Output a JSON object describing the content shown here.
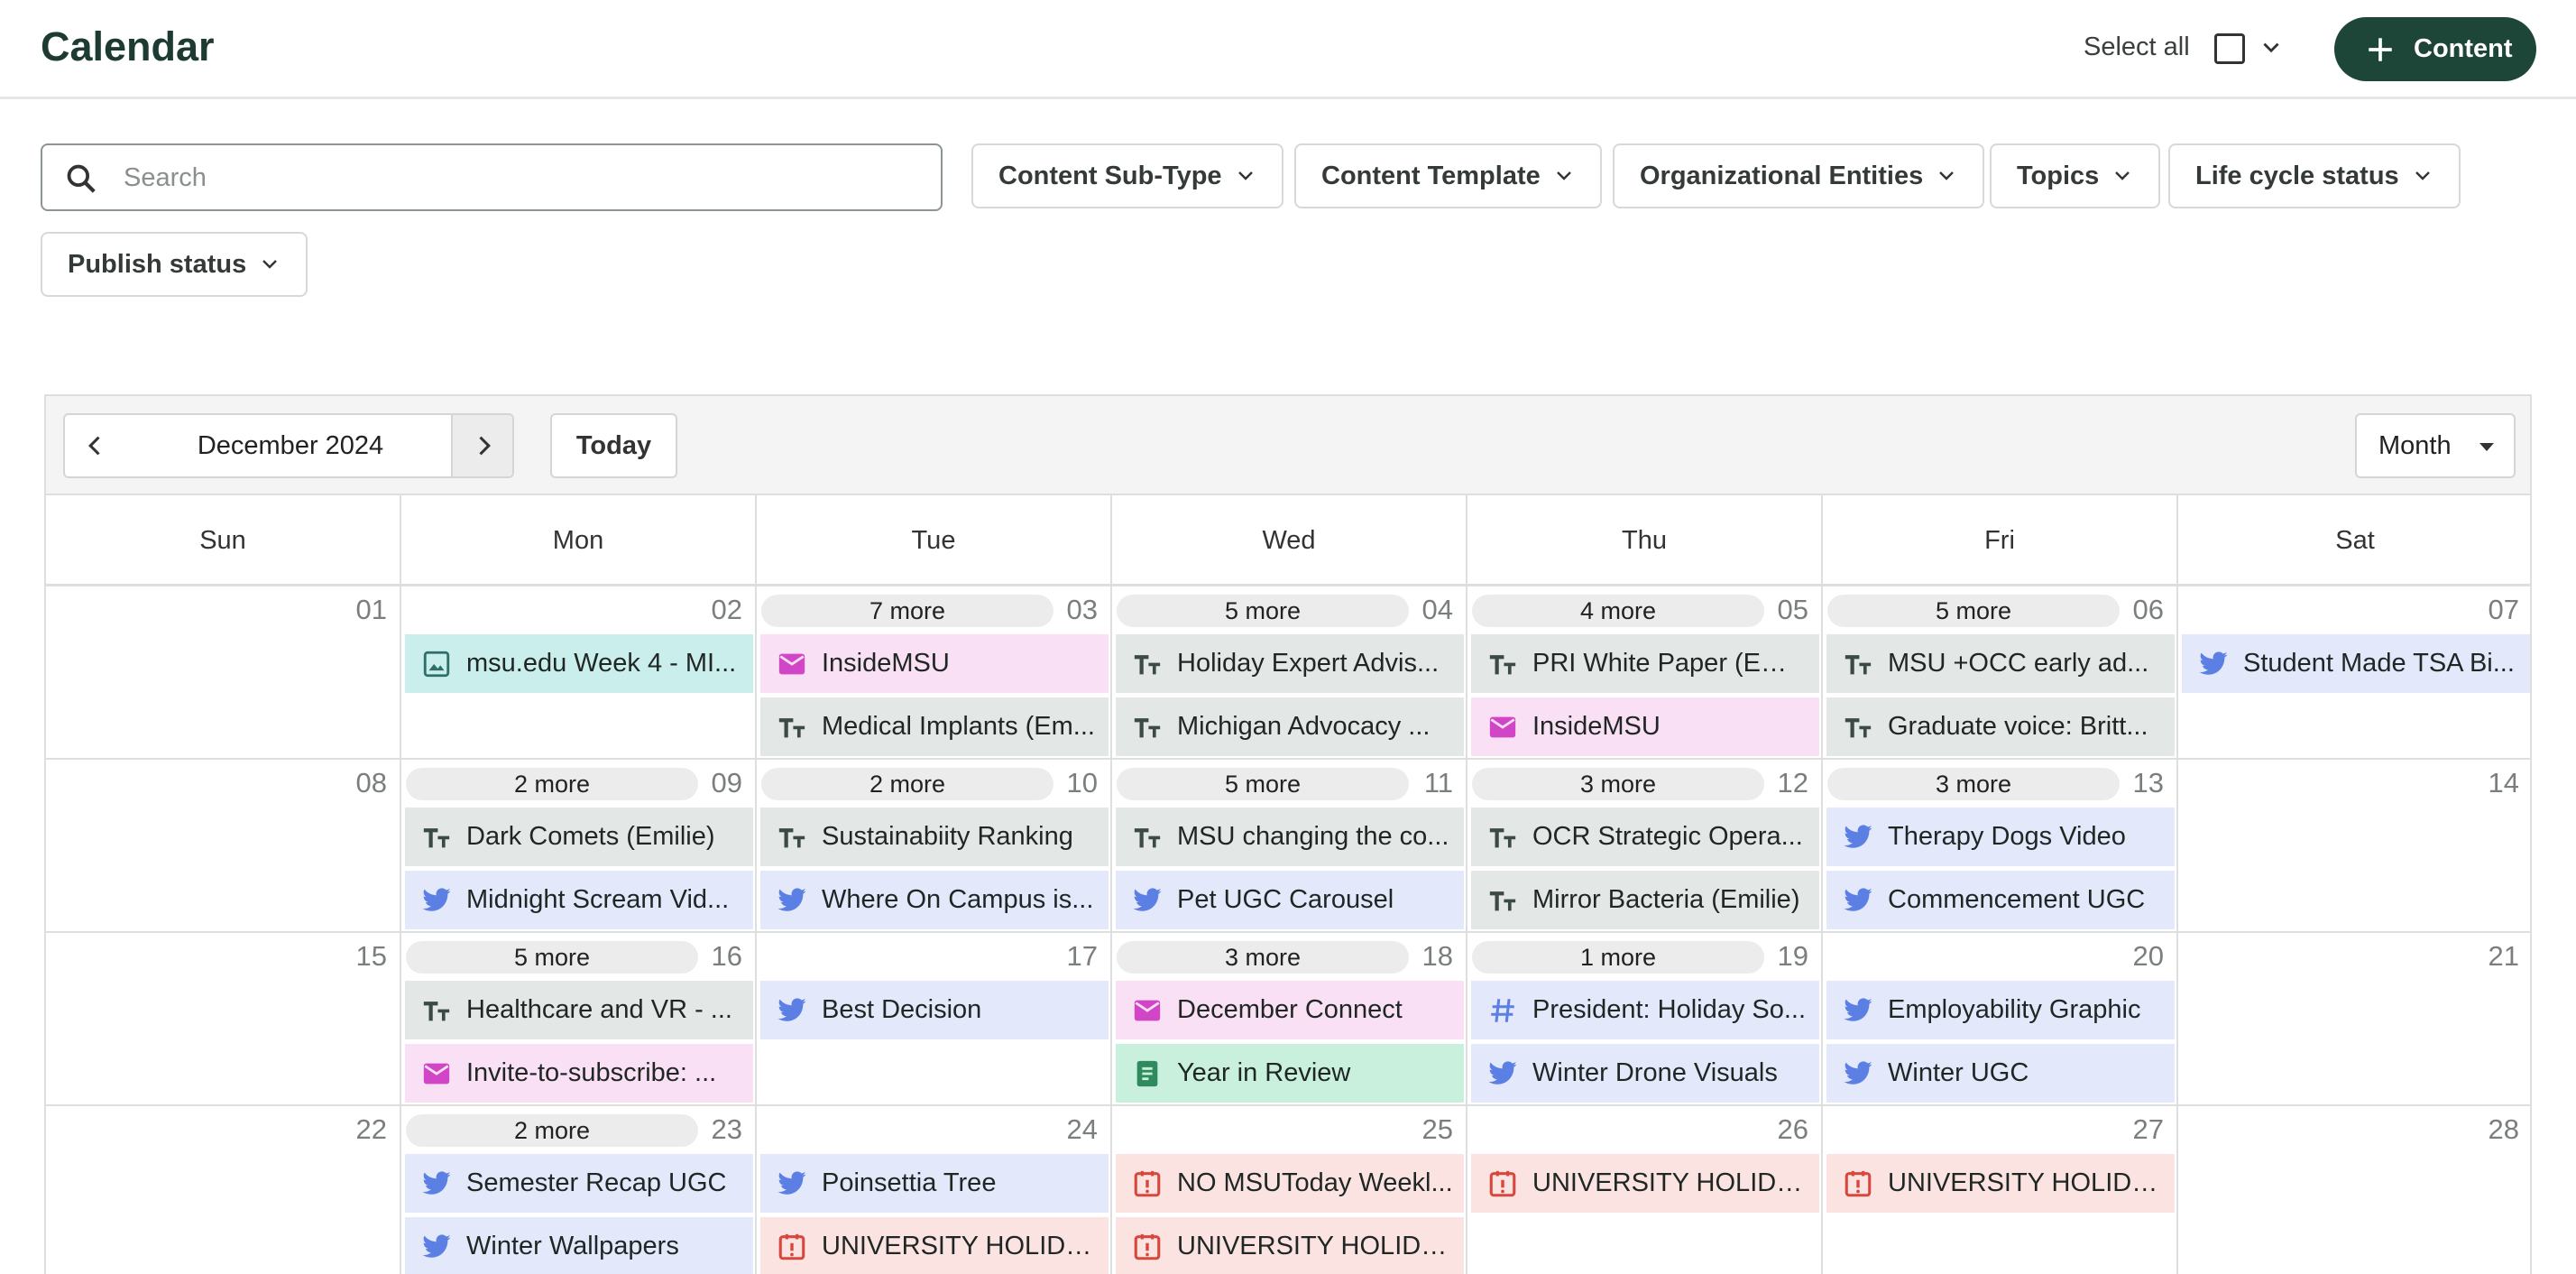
{
  "header": {
    "title": "Calendar",
    "select_all_label": "Select all",
    "add_button_label": "Content",
    "accent_color": "#1e4638"
  },
  "filters": {
    "search_placeholder": "Search",
    "search_value": "",
    "items": [
      "Content Sub-Type",
      "Content Template",
      "Organizational Entities",
      "Topics",
      "Life cycle status",
      "Publish status"
    ]
  },
  "calendar": {
    "month_label": "December 2024",
    "today_label": "Today",
    "view_label": "Month",
    "weekdays": [
      "Sun",
      "Mon",
      "Tue",
      "Wed",
      "Thu",
      "Fri",
      "Sat"
    ],
    "weeks": [
      [
        {
          "day": "01",
          "more": "",
          "events": []
        },
        {
          "day": "02",
          "more": "",
          "events": [
            {
              "type": "image",
              "icon": "image-icon",
              "title": "msu.edu Week 4 - MI..."
            }
          ]
        },
        {
          "day": "03",
          "more": "7 more",
          "events": [
            {
              "type": "email",
              "icon": "mail-icon",
              "title": "InsideMSU"
            },
            {
              "type": "text",
              "icon": "text-format-icon",
              "title": "Medical Implants (Em..."
            }
          ]
        },
        {
          "day": "04",
          "more": "5 more",
          "events": [
            {
              "type": "text",
              "icon": "text-format-icon",
              "title": "Holiday Expert Advis..."
            },
            {
              "type": "text",
              "icon": "text-format-icon",
              "title": "Michigan Advocacy ..."
            }
          ]
        },
        {
          "day": "05",
          "more": "4 more",
          "events": [
            {
              "type": "text",
              "icon": "text-format-icon",
              "title": "PRI White Paper (Emi..."
            },
            {
              "type": "email",
              "icon": "mail-icon",
              "title": "InsideMSU"
            }
          ]
        },
        {
          "day": "06",
          "more": "5 more",
          "events": [
            {
              "type": "text",
              "icon": "text-format-icon",
              "title": "MSU +OCC early ad..."
            },
            {
              "type": "text",
              "icon": "text-format-icon",
              "title": "Graduate voice: Britt..."
            }
          ]
        },
        {
          "day": "07",
          "more": "",
          "events": [
            {
              "type": "twitter",
              "icon": "twitter-bird-icon",
              "title": "Student Made TSA Bi..."
            }
          ]
        }
      ],
      [
        {
          "day": "08",
          "more": "",
          "events": []
        },
        {
          "day": "09",
          "more": "2 more",
          "events": [
            {
              "type": "text",
              "icon": "text-format-icon",
              "title": "Dark Comets (Emilie)"
            },
            {
              "type": "twitter",
              "icon": "twitter-bird-icon",
              "title": "Midnight Scream Vid..."
            }
          ]
        },
        {
          "day": "10",
          "more": "2 more",
          "events": [
            {
              "type": "text",
              "icon": "text-format-icon",
              "title": "Sustainabiity Ranking"
            },
            {
              "type": "twitter",
              "icon": "twitter-bird-icon",
              "title": "Where On Campus is..."
            }
          ]
        },
        {
          "day": "11",
          "more": "5 more",
          "events": [
            {
              "type": "text",
              "icon": "text-format-icon",
              "title": "MSU changing the co..."
            },
            {
              "type": "twitter",
              "icon": "twitter-bird-icon",
              "title": "Pet UGC Carousel"
            }
          ]
        },
        {
          "day": "12",
          "more": "3 more",
          "events": [
            {
              "type": "text",
              "icon": "text-format-icon",
              "title": "OCR Strategic Opera..."
            },
            {
              "type": "text",
              "icon": "text-format-icon",
              "title": "Mirror Bacteria (Emilie)"
            }
          ]
        },
        {
          "day": "13",
          "more": "3 more",
          "events": [
            {
              "type": "twitter",
              "icon": "twitter-bird-icon",
              "title": "Therapy Dogs Video"
            },
            {
              "type": "twitter",
              "icon": "twitter-bird-icon",
              "title": "Commencement UGC"
            }
          ]
        },
        {
          "day": "14",
          "more": "",
          "events": []
        }
      ],
      [
        {
          "day": "15",
          "more": "",
          "events": []
        },
        {
          "day": "16",
          "more": "5 more",
          "events": [
            {
              "type": "text",
              "icon": "text-format-icon",
              "title": "Healthcare and VR - ..."
            },
            {
              "type": "email",
              "icon": "mail-icon",
              "title": "Invite-to-subscribe: ..."
            }
          ]
        },
        {
          "day": "17",
          "more": "",
          "events": [
            {
              "type": "twitter",
              "icon": "twitter-bird-icon",
              "title": "Best Decision"
            }
          ]
        },
        {
          "day": "18",
          "more": "3 more",
          "events": [
            {
              "type": "email",
              "icon": "mail-icon",
              "title": "December Connect"
            },
            {
              "type": "doc",
              "icon": "document-icon",
              "title": "Year in Review"
            }
          ]
        },
        {
          "day": "19",
          "more": "1 more",
          "events": [
            {
              "type": "hash",
              "icon": "hashtag-icon",
              "title": "President: Holiday So..."
            },
            {
              "type": "twitter",
              "icon": "twitter-bird-icon",
              "title": "Winter Drone Visuals"
            }
          ]
        },
        {
          "day": "20",
          "more": "",
          "events": [
            {
              "type": "twitter",
              "icon": "twitter-bird-icon",
              "title": "Employability Graphic"
            },
            {
              "type": "twitter",
              "icon": "twitter-bird-icon",
              "title": "Winter UGC"
            }
          ]
        },
        {
          "day": "21",
          "more": "",
          "events": []
        }
      ],
      [
        {
          "day": "22",
          "more": "",
          "events": []
        },
        {
          "day": "23",
          "more": "2 more",
          "events": [
            {
              "type": "twitter",
              "icon": "twitter-bird-icon",
              "title": "Semester Recap UGC"
            },
            {
              "type": "twitter",
              "icon": "twitter-bird-icon",
              "title": "Winter Wallpapers"
            }
          ]
        },
        {
          "day": "24",
          "more": "",
          "events": [
            {
              "type": "twitter",
              "icon": "twitter-bird-icon",
              "title": "Poinsettia Tree"
            },
            {
              "type": "holiday",
              "icon": "calendar-alert-icon",
              "title": "UNIVERSITY HOLIDAY"
            }
          ]
        },
        {
          "day": "25",
          "more": "",
          "events": [
            {
              "type": "holiday",
              "icon": "calendar-alert-icon",
              "title": "NO MSUToday Weekl..."
            },
            {
              "type": "holiday",
              "icon": "calendar-alert-icon",
              "title": "UNIVERSITY HOLIDAY"
            }
          ]
        },
        {
          "day": "26",
          "more": "",
          "events": [
            {
              "type": "holiday",
              "icon": "calendar-alert-icon",
              "title": "UNIVERSITY HOLIDAY"
            }
          ]
        },
        {
          "day": "27",
          "more": "",
          "events": [
            {
              "type": "holiday",
              "icon": "calendar-alert-icon",
              "title": "UNIVERSITY HOLIDAY"
            }
          ]
        },
        {
          "day": "28",
          "more": "",
          "events": []
        }
      ]
    ]
  }
}
